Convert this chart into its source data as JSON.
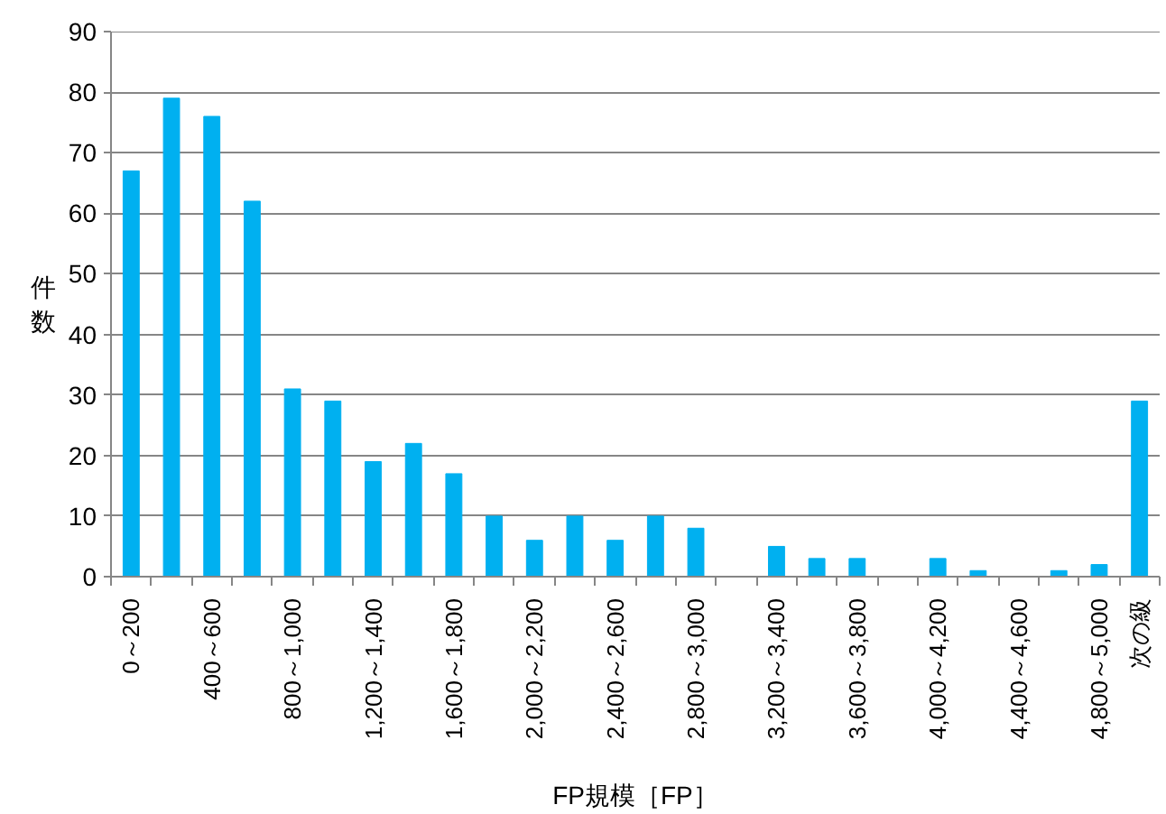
{
  "chart_data": {
    "type": "bar",
    "categories": [
      "0～200",
      null,
      "400～600",
      null,
      "800～1,000",
      null,
      "1,200～1,400",
      null,
      "1,600～1,800",
      null,
      "2,000～2,200",
      null,
      "2,400～2,600",
      null,
      "2,800～3,000",
      null,
      "3,200～3,400",
      null,
      "3,600～3,800",
      null,
      "4,000～4,200",
      null,
      "4,400～4,600",
      null,
      "4,800～5,000",
      "次の級"
    ],
    "values": [
      67,
      79,
      76,
      62,
      31,
      29,
      19,
      22,
      17,
      10,
      6,
      10,
      6,
      10,
      8,
      0,
      5,
      3,
      3,
      0,
      3,
      1,
      0,
      1,
      2,
      29
    ],
    "color": "#00b0f0",
    "xlabel": "FP規模［FP］",
    "ylabel": "件数",
    "ylim": [
      0,
      90
    ],
    "yticks": [
      0,
      10,
      20,
      30,
      40,
      50,
      60,
      70,
      80,
      90
    ],
    "grid": "y"
  }
}
